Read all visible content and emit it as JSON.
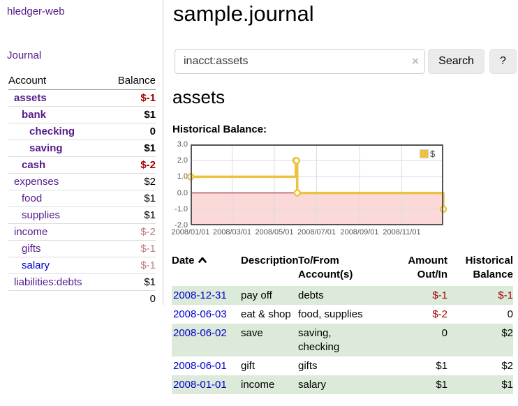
{
  "app": {
    "brand": "hledger-web",
    "nav_journal": "Journal"
  },
  "sidebar": {
    "col_account": "Account",
    "col_balance": "Balance",
    "accounts": [
      {
        "name": "assets",
        "balance": "$-1"
      },
      {
        "name": "bank",
        "balance": "$1"
      },
      {
        "name": "checking",
        "balance": "0"
      },
      {
        "name": "saving",
        "balance": "$1"
      },
      {
        "name": "cash",
        "balance": "$-2"
      },
      {
        "name": "expenses",
        "balance": "$2"
      },
      {
        "name": "food",
        "balance": "$1"
      },
      {
        "name": "supplies",
        "balance": "$1"
      },
      {
        "name": "income",
        "balance": "$-2"
      },
      {
        "name": "gifts",
        "balance": "$-1"
      },
      {
        "name": "salary",
        "balance": "$-1"
      },
      {
        "name": "liabilities:debts",
        "balance": "$1"
      }
    ],
    "total": "0"
  },
  "header": {
    "title": "sample.journal"
  },
  "search": {
    "value": "inacct:assets",
    "clear_icon": "×",
    "button_label": "Search",
    "help_label": "?"
  },
  "register": {
    "heading": "assets",
    "chart_label": "Historical Balance:",
    "table": {
      "headers": {
        "date": "Date",
        "description": "Description",
        "tofrom": "To/From Account(s)",
        "amount": "Amount Out/In",
        "historical": "Historical Balance"
      },
      "rows": [
        {
          "date": "2008-12-31",
          "description": "pay off",
          "accounts": "debts",
          "amount": "$-1",
          "balance": "$-1"
        },
        {
          "date": "2008-06-03",
          "description": "eat & shop",
          "accounts": "food, supplies",
          "amount": "$-2",
          "balance": "0"
        },
        {
          "date": "2008-06-02",
          "description": "save",
          "accounts": "saving, checking",
          "amount": "0",
          "balance": "$2"
        },
        {
          "date": "2008-06-01",
          "description": "gift",
          "accounts": "gifts",
          "amount": "$1",
          "balance": "$2"
        },
        {
          "date": "2008-01-01",
          "description": "income",
          "accounts": "salary",
          "amount": "$1",
          "balance": "$1"
        }
      ]
    }
  },
  "chart_data": {
    "type": "line",
    "title": "Historical Balance",
    "step": true,
    "series": [
      {
        "name": "$",
        "color": "#edc240",
        "points": [
          [
            "2008-01-01",
            1
          ],
          [
            "2008-06-01",
            2
          ],
          [
            "2008-06-02",
            2
          ],
          [
            "2008-06-03",
            0
          ],
          [
            "2008-12-31",
            -1
          ]
        ]
      }
    ],
    "xlim": [
      "2008-01-01",
      "2008-12-31"
    ],
    "ylim": [
      -2,
      3
    ],
    "x_ticks": [
      "2008/01/01",
      "2008/03/01",
      "2008/05/01",
      "2008/07/01",
      "2008/09/01",
      "2008/11/01"
    ],
    "y_ticks": [
      "3.0",
      "2.0",
      "1.0",
      "0.0",
      "-1.0",
      "-2.0"
    ],
    "legend": {
      "label": "$",
      "position": "top-right"
    },
    "grid": true,
    "grid_color": "#dcdcdc",
    "border_color": "#545454",
    "zero_line_color": "#800000",
    "negative_region_color": "#fbd9d9"
  }
}
